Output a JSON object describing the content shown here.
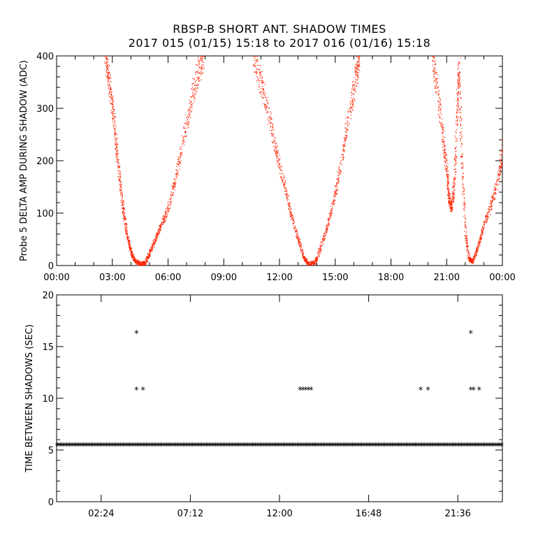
{
  "title_line1": "RBSP-B SHORT ANT. SHADOW TIMES",
  "title_line2": "2017 015 (01/15) 15:18 to 2017 016 (01/16) 15:18",
  "colors": {
    "top_points": "#ff2000",
    "bottom_points": "#000000",
    "axes": "#000000"
  },
  "chart_data": [
    {
      "type": "scatter",
      "name": "probe5-delta-amp",
      "ylabel": "Probe 5 DELTA AMP DURING SHADOW (ADC)",
      "xlabel": "",
      "xlim": [
        0,
        24
      ],
      "ylim": [
        0,
        400
      ],
      "x_units": "hours",
      "xtick_values": [
        0,
        3,
        6,
        9,
        12,
        15,
        18,
        21,
        24
      ],
      "xtick_labels": [
        "00:00",
        "03:00",
        "06:00",
        "09:00",
        "12:00",
        "15:00",
        "18:00",
        "21:00",
        "00:00"
      ],
      "ytick_values": [
        0,
        100,
        200,
        300,
        400
      ],
      "ytick_labels": [
        "0",
        "100",
        "200",
        "300",
        "400"
      ],
      "series": [
        {
          "name": "shadow amplitude",
          "color": "#ff2000",
          "points": [
            [
              2.6,
              400
            ],
            [
              2.8,
              360
            ],
            [
              3.0,
              300
            ],
            [
              3.2,
              230
            ],
            [
              3.4,
              160
            ],
            [
              3.6,
              100
            ],
            [
              3.8,
              55
            ],
            [
              4.0,
              25
            ],
            [
              4.2,
              10
            ],
            [
              4.45,
              4
            ],
            [
              4.75,
              5
            ],
            [
              5.0,
              25
            ],
            [
              5.3,
              50
            ],
            [
              5.6,
              75
            ],
            [
              6.0,
              110
            ],
            [
              6.4,
              170
            ],
            [
              6.8,
              240
            ],
            [
              7.2,
              310
            ],
            [
              7.6,
              370
            ],
            [
              7.9,
              400
            ],
            [
              10.6,
              400
            ],
            [
              11.0,
              350
            ],
            [
              11.4,
              290
            ],
            [
              11.8,
              220
            ],
            [
              12.2,
              160
            ],
            [
              12.6,
              100
            ],
            [
              13.0,
              50
            ],
            [
              13.3,
              15
            ],
            [
              13.55,
              4
            ],
            [
              13.9,
              6
            ],
            [
              14.2,
              35
            ],
            [
              14.6,
              80
            ],
            [
              15.0,
              140
            ],
            [
              15.4,
              220
            ],
            [
              15.8,
              300
            ],
            [
              16.1,
              360
            ],
            [
              16.3,
              400
            ],
            [
              20.2,
              400
            ],
            [
              20.5,
              330
            ],
            [
              20.8,
              240
            ],
            [
              21.0,
              180
            ],
            [
              21.1,
              130
            ],
            [
              21.25,
              110
            ],
            [
              21.4,
              160
            ],
            [
              21.55,
              300
            ],
            [
              21.65,
              380
            ],
            [
              21.8,
              200
            ],
            [
              22.0,
              60
            ],
            [
              22.2,
              12
            ],
            [
              22.4,
              8
            ],
            [
              22.7,
              40
            ],
            [
              23.0,
              80
            ],
            [
              23.4,
              120
            ],
            [
              23.8,
              170
            ],
            [
              24.0,
              230
            ]
          ]
        }
      ]
    },
    {
      "type": "scatter",
      "name": "time-between-shadows",
      "ylabel": "TIME BETWEEN SHADOWS (SEC)",
      "xlabel": "",
      "xlim": [
        0,
        24
      ],
      "ylim": [
        0,
        20
      ],
      "x_units": "hours",
      "xtick_values": [
        2.4,
        7.2,
        12.0,
        16.8,
        21.6
      ],
      "xtick_labels": [
        "02:24",
        "07:12",
        "12:00",
        "16:48",
        "21:36"
      ],
      "ytick_values": [
        0,
        5,
        10,
        15,
        20
      ],
      "ytick_labels": [
        "0",
        "5",
        "10",
        "15",
        "20"
      ],
      "baseline": {
        "value": 5.4,
        "x_start": 0,
        "x_end": 24
      },
      "series": [
        {
          "name": "outliers",
          "color": "#000000",
          "points": [
            [
              4.3,
              16.3
            ],
            [
              4.3,
              10.8
            ],
            [
              4.65,
              10.8
            ],
            [
              13.1,
              10.8
            ],
            [
              13.25,
              10.8
            ],
            [
              13.4,
              10.8
            ],
            [
              13.55,
              10.8
            ],
            [
              13.7,
              10.8
            ],
            [
              19.6,
              10.8
            ],
            [
              20.0,
              10.8
            ],
            [
              22.3,
              16.3
            ],
            [
              22.3,
              10.8
            ],
            [
              22.45,
              10.8
            ],
            [
              22.75,
              10.8
            ]
          ]
        }
      ]
    }
  ]
}
